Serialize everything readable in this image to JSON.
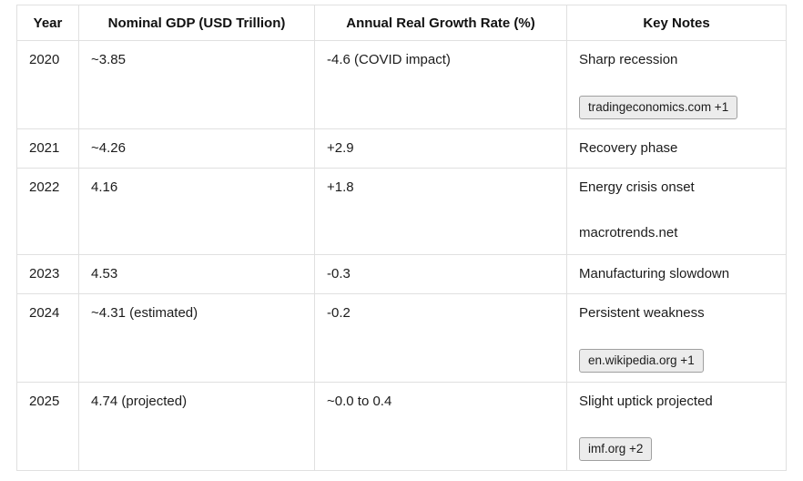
{
  "table": {
    "headers": [
      "Year",
      "Nominal GDP (USD Trillion)",
      "Annual Real Growth Rate (%)",
      "Key Notes"
    ],
    "rows": [
      {
        "year": "2020",
        "gdp": "~3.85",
        "growth": "-4.6 (COVID impact)",
        "note": "Sharp recession",
        "source": "tradingeconomics.com +1",
        "source_type": "badge"
      },
      {
        "year": "2021",
        "gdp": "~4.26",
        "growth": "+2.9",
        "note": "Recovery phase",
        "source": "",
        "source_type": "none"
      },
      {
        "year": "2022",
        "gdp": "4.16",
        "growth": "+1.8",
        "note": "Energy crisis onset",
        "source": "macrotrends.net",
        "source_type": "text"
      },
      {
        "year": "2023",
        "gdp": "4.53",
        "growth": "-0.3",
        "note": "Manufacturing slowdown",
        "source": "",
        "source_type": "none"
      },
      {
        "year": "2024",
        "gdp": "~4.31 (estimated)",
        "growth": "-0.2",
        "note": "Persistent weakness",
        "source": "en.wikipedia.org +1",
        "source_type": "badge"
      },
      {
        "year": "2025",
        "gdp": "4.74 (projected)",
        "growth": "~0.0 to 0.4",
        "note": "Slight uptick projected",
        "source": "imf.org +2",
        "source_type": "badge"
      }
    ]
  },
  "colors": {
    "cell_border": "#e0e0e0",
    "text": "#1c1c1c",
    "badge_background": "#ececec",
    "badge_border": "#a0a0a0"
  }
}
